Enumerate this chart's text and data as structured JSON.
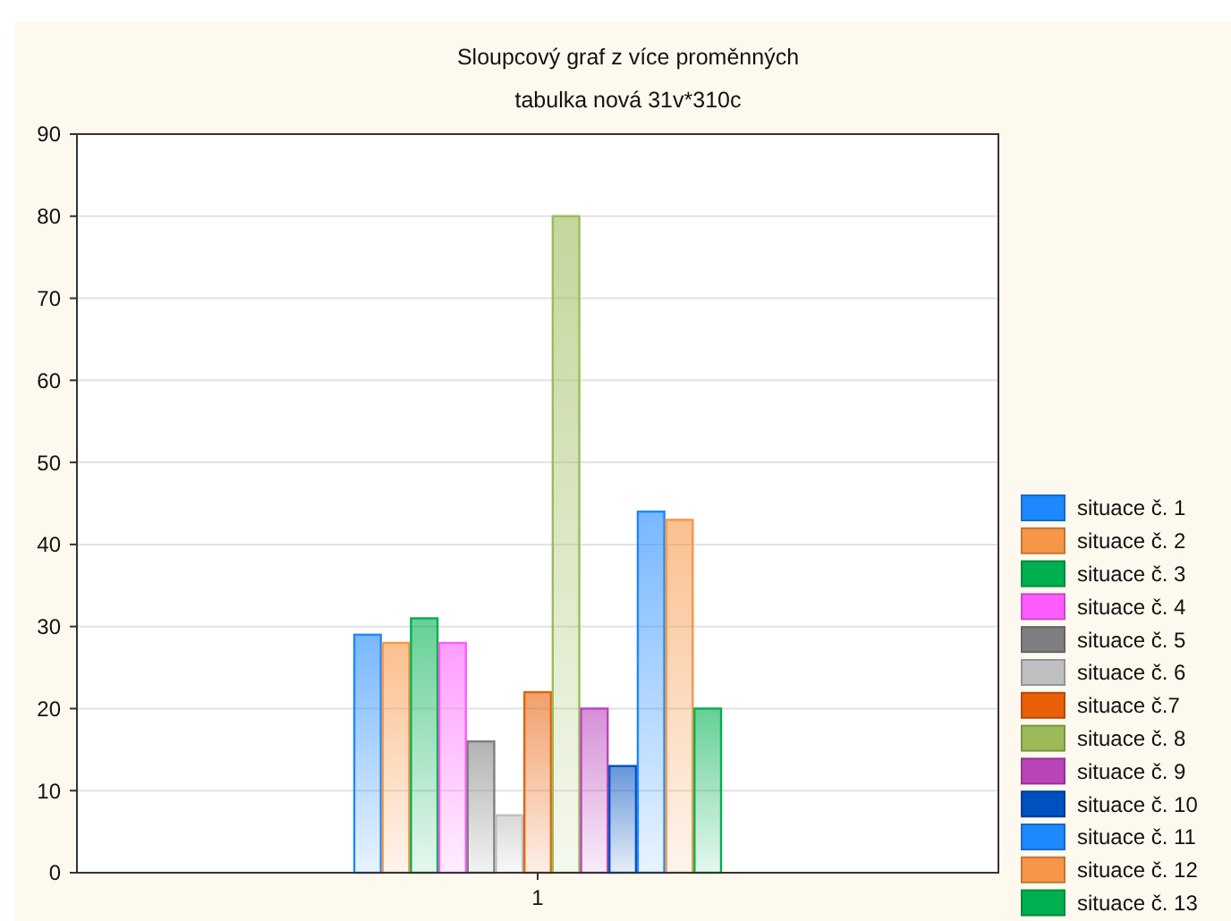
{
  "chart_data": {
    "type": "bar",
    "title": "Sloupcový graf z více proměnných",
    "subtitle": "tabulka nová 31v*310c",
    "categories": [
      "1"
    ],
    "series": [
      {
        "name": "situace č. 1",
        "color": "#1e88ff",
        "values": [
          29
        ]
      },
      {
        "name": "situace č. 2",
        "color": "#f79646",
        "values": [
          28
        ]
      },
      {
        "name": "situace č. 3",
        "color": "#00b050",
        "values": [
          31
        ]
      },
      {
        "name": "situace č. 4",
        "color": "#ff5cff",
        "values": [
          28
        ]
      },
      {
        "name": "situace č. 5",
        "color": "#7f7f7f",
        "values": [
          16
        ]
      },
      {
        "name": "situace č. 6",
        "color": "#bfbfbf",
        "values": [
          7
        ]
      },
      {
        "name": "situace č.7",
        "color": "#e8600a",
        "values": [
          22
        ]
      },
      {
        "name": "situace č. 8",
        "color": "#9bbb59",
        "values": [
          80
        ]
      },
      {
        "name": "situace č. 9",
        "color": "#bb44bb",
        "values": [
          20
        ]
      },
      {
        "name": "situace č. 10",
        "color": "#0050c0",
        "values": [
          13
        ]
      },
      {
        "name": "situace č. 11",
        "color": "#1e88ff",
        "values": [
          44
        ]
      },
      {
        "name": "situace č. 12",
        "color": "#f79646",
        "values": [
          43
        ]
      },
      {
        "name": "situace č. 13",
        "color": "#00b050",
        "values": [
          20
        ]
      }
    ],
    "ylim": [
      0,
      90
    ],
    "yticks": [
      0,
      10,
      20,
      30,
      40,
      50,
      60,
      70,
      80,
      90
    ],
    "grid": "y",
    "legend": "right"
  }
}
